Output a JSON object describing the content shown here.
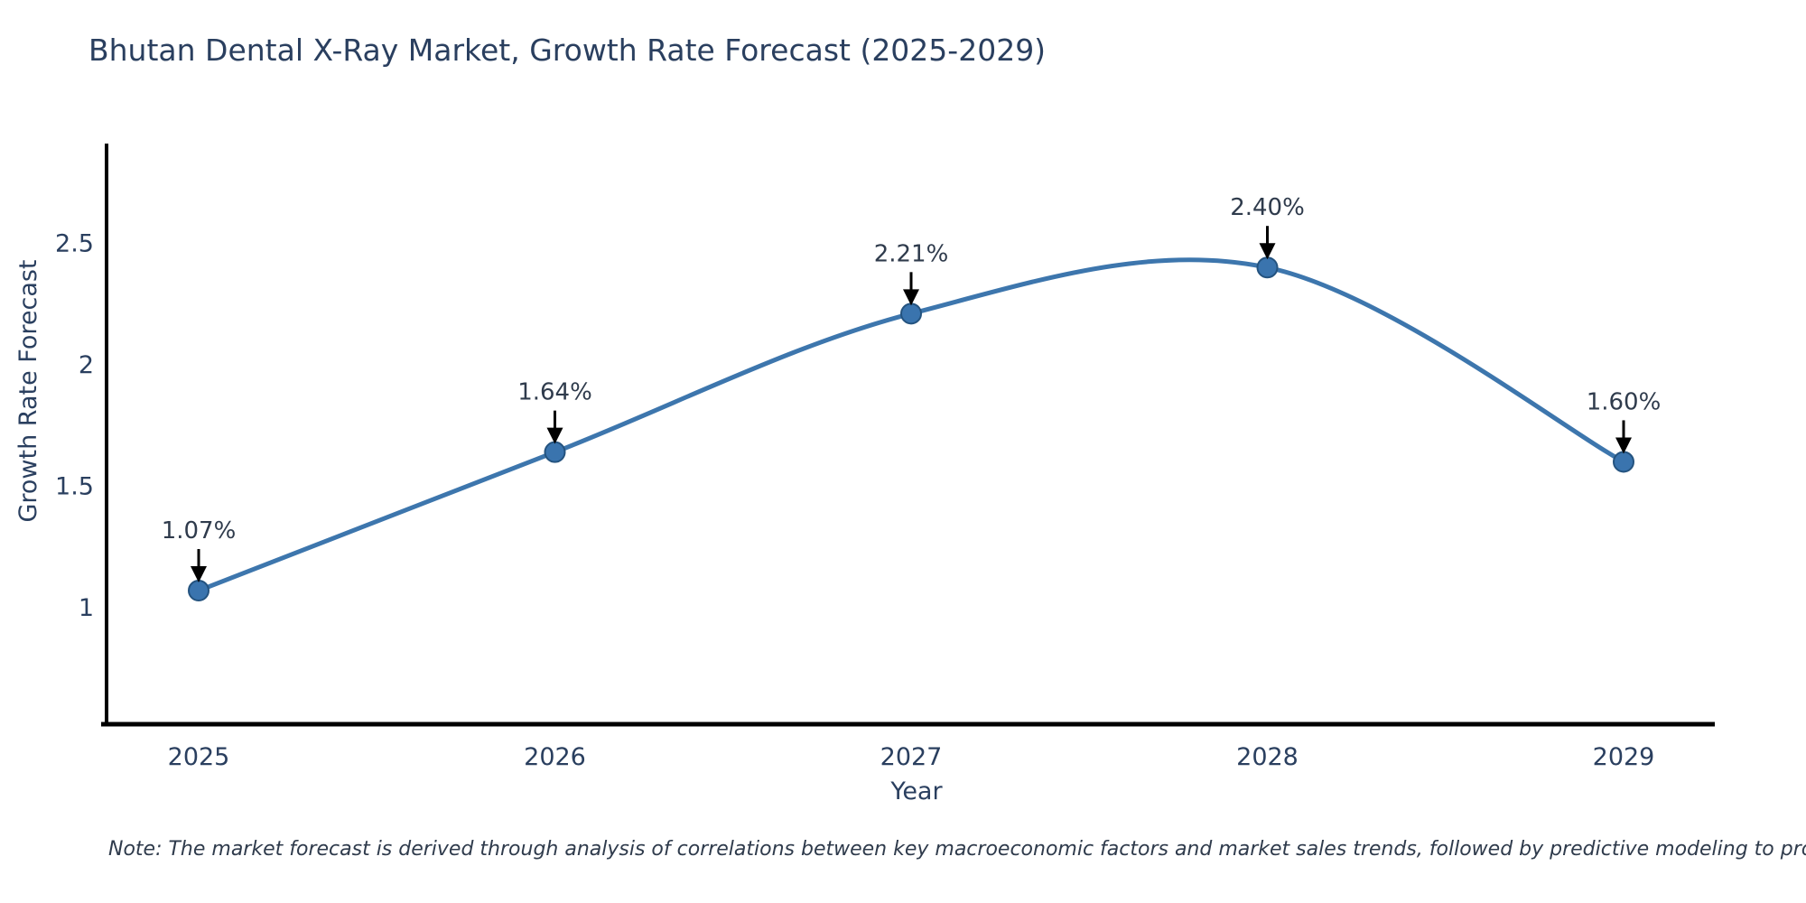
{
  "title": {
    "text": "Bhutan Dental X-Ray Market, Growth Rate Forecast (2025-2029)",
    "color": "#2a3f5f"
  },
  "note": {
    "text": "Note: The market forecast is derived through analysis of correlations between key macroeconomic factors and market sales trends, followed by predictive modeling to project future sales"
  },
  "chart_data": {
    "type": "line",
    "title": "Bhutan Dental X-Ray Market, Growth Rate Forecast (2025-2029)",
    "xlabel": "Year",
    "ylabel": "Growth Rate Forecast",
    "categories": [
      "2025",
      "2026",
      "2027",
      "2028",
      "2029"
    ],
    "values": [
      1.07,
      1.64,
      2.21,
      2.4,
      1.6
    ],
    "point_labels": [
      "1.07%",
      "1.64%",
      "2.21%",
      "2.40%",
      "1.60%"
    ],
    "yticks": [
      1,
      1.5,
      2,
      2.5
    ],
    "ylim": [
      0.52,
      2.91
    ],
    "grid": "off",
    "legend": "none",
    "line_color": "#3d76ad",
    "marker_color": "#3a74ae",
    "marker_edge_color": "#24537f",
    "axis_color": "#000000",
    "arrow_color": "#000000",
    "smoothing": "spline"
  }
}
